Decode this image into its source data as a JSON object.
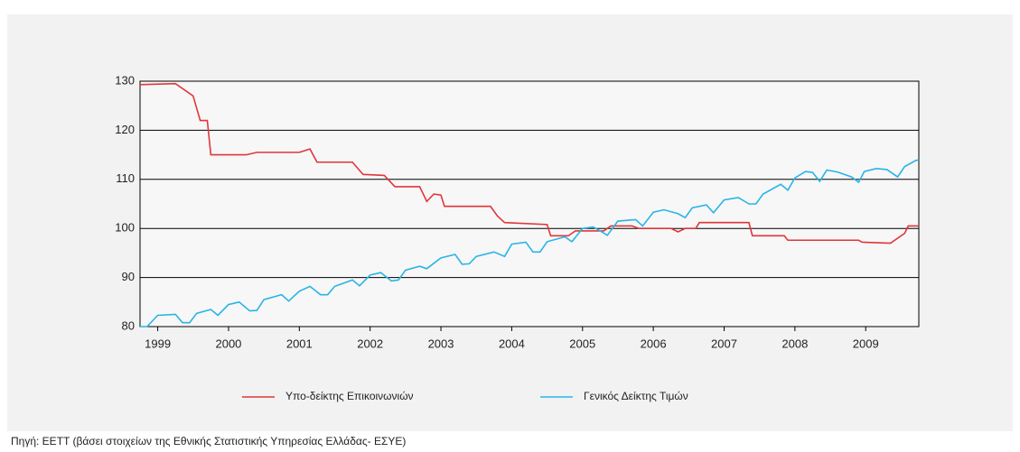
{
  "chart_data": {
    "type": "line",
    "xlim": [
      1998.75,
      2009.75
    ],
    "xticks": [
      1999,
      2000,
      2001,
      2002,
      2003,
      2004,
      2005,
      2006,
      2007,
      2008,
      2009
    ],
    "ylim": [
      80,
      130
    ],
    "yticks": [
      80,
      90,
      100,
      110,
      120,
      130
    ],
    "grid": true,
    "legend": "bottom",
    "source": "Πηγή: ΕΕΤΤ (βάσει στοιχείων της Εθνικής Στατιστικής Υπηρεσίας Ελλάδας- ΕΣΥΕ)",
    "series": [
      {
        "name": "Υπο-δείκτης Επικοινωνιών",
        "color": "#e0363a",
        "x": [
          1998.75,
          1999.25,
          1999.5,
          1999.6,
          1999.7,
          1999.75,
          2000.25,
          2000.4,
          2001.0,
          2001.15,
          2001.25,
          2001.75,
          2001.9,
          2002.2,
          2002.35,
          2002.7,
          2002.8,
          2002.9,
          2003.0,
          2003.05,
          2003.7,
          2003.8,
          2003.9,
          2004.5,
          2004.55,
          2004.8,
          2004.9,
          2005.3,
          2005.4,
          2005.7,
          2005.8,
          2006.25,
          2006.35,
          2006.45,
          2006.6,
          2006.65,
          2007.35,
          2007.4,
          2007.85,
          2007.9,
          2008.9,
          2008.95,
          2009.35,
          2009.55,
          2009.6,
          2009.75
        ],
        "values": [
          129.3,
          129.5,
          127,
          122,
          122,
          115,
          115,
          115.5,
          115.5,
          116.2,
          113.5,
          113.5,
          111,
          110.8,
          108.5,
          108.5,
          105.5,
          107,
          106.8,
          104.5,
          104.5,
          102.5,
          101.2,
          100.8,
          98.5,
          98.5,
          99.5,
          99.5,
          100.5,
          100.5,
          100,
          100,
          99.3,
          100,
          100,
          101.2,
          101.2,
          98.5,
          98.5,
          97.6,
          97.6,
          97.2,
          97,
          99,
          100.5,
          100.5
        ]
      },
      {
        "name": "Γενικός Δείκτης Τιμών",
        "color": "#2ab4e6",
        "x": [
          1998.75,
          1998.85,
          1999.0,
          1999.25,
          1999.35,
          1999.45,
          1999.55,
          1999.75,
          1999.85,
          2000.0,
          2000.15,
          2000.3,
          2000.4,
          2000.5,
          2000.75,
          2000.85,
          2001.0,
          2001.15,
          2001.3,
          2001.4,
          2001.5,
          2001.75,
          2001.85,
          2002.0,
          2002.15,
          2002.3,
          2002.4,
          2002.5,
          2002.7,
          2002.8,
          2003.0,
          2003.2,
          2003.3,
          2003.4,
          2003.5,
          2003.75,
          2003.9,
          2004.0,
          2004.2,
          2004.3,
          2004.4,
          2004.5,
          2004.75,
          2004.85,
          2005.0,
          2005.15,
          2005.25,
          2005.35,
          2005.5,
          2005.75,
          2005.85,
          2006.0,
          2006.15,
          2006.35,
          2006.45,
          2006.55,
          2006.75,
          2006.85,
          2007.0,
          2007.2,
          2007.35,
          2007.45,
          2007.55,
          2007.8,
          2007.9,
          2008.0,
          2008.15,
          2008.25,
          2008.35,
          2008.45,
          2008.6,
          2008.8,
          2008.9,
          2008.98,
          2009.15,
          2009.3,
          2009.45,
          2009.55,
          2009.7,
          2009.75
        ],
        "values": [
          80,
          80,
          82.3,
          82.5,
          80.8,
          80.8,
          82.7,
          83.5,
          82.3,
          84.5,
          85,
          83.2,
          83.3,
          85.5,
          86.5,
          85.2,
          87.2,
          88.2,
          86.5,
          86.5,
          88.2,
          89.5,
          88.3,
          90.5,
          91,
          89.3,
          89.5,
          91.5,
          92.3,
          91.8,
          94,
          94.7,
          92.7,
          92.8,
          94.3,
          95.2,
          94.3,
          96.8,
          97.2,
          95.2,
          95.2,
          97.3,
          98.3,
          97.3,
          100,
          100.3,
          99.5,
          98.6,
          101.5,
          101.8,
          100.5,
          103.3,
          103.8,
          103,
          102.2,
          104.2,
          104.8,
          103.2,
          105.8,
          106.3,
          105,
          105,
          107,
          109,
          107.8,
          110.3,
          111.6,
          111.4,
          109.6,
          111.9,
          111.5,
          110.5,
          109.4,
          111.6,
          112.2,
          112,
          110.5,
          112.6,
          113.8,
          114
        ]
      }
    ]
  }
}
